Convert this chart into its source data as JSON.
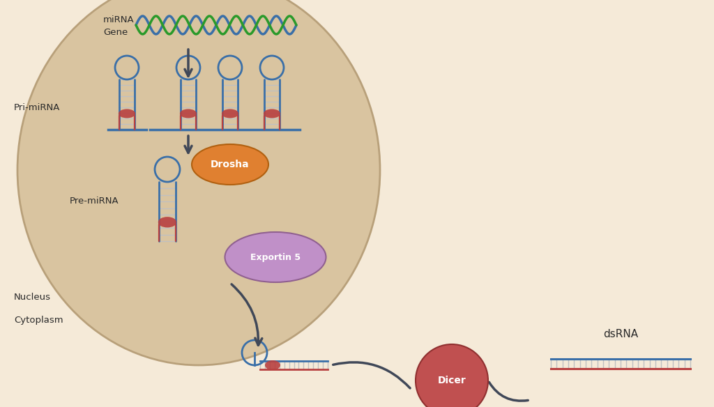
{
  "bg_color": "#f5ead8",
  "nucleus_fill": "#d9c4a0",
  "nucleus_edge": "#b8a07a",
  "cytoplasm_bg": "#f5ead8",
  "dna_blue": "#3a6fa8",
  "dna_green": "#2a9a2a",
  "rna_blue": "#3a6fa8",
  "rna_red": "#b84040",
  "drosha_fill": "#e08030",
  "drosha_edge": "#b06010",
  "exportin_fill": "#c090c8",
  "exportin_edge": "#906090",
  "dicer_fill": "#c05050",
  "dicer_edge": "#903030",
  "arrow_color": "#404858",
  "label_color": "#2a2a2a",
  "rung_color": "#c0c0c0",
  "labels": {
    "mirna": "miRNA",
    "gene": "Gene",
    "pri_mirna": "Pri-miRNA",
    "pre_mirna": "Pre-miRNA",
    "nucleus": "Nucleus",
    "cytoplasm": "Cytoplasm",
    "drosha": "Drosha",
    "exportin5": "Exportin 5",
    "dicer": "Dicer",
    "dsrna": "dsRNA"
  },
  "fig_w": 10.24,
  "fig_h": 5.84,
  "dpi": 100
}
